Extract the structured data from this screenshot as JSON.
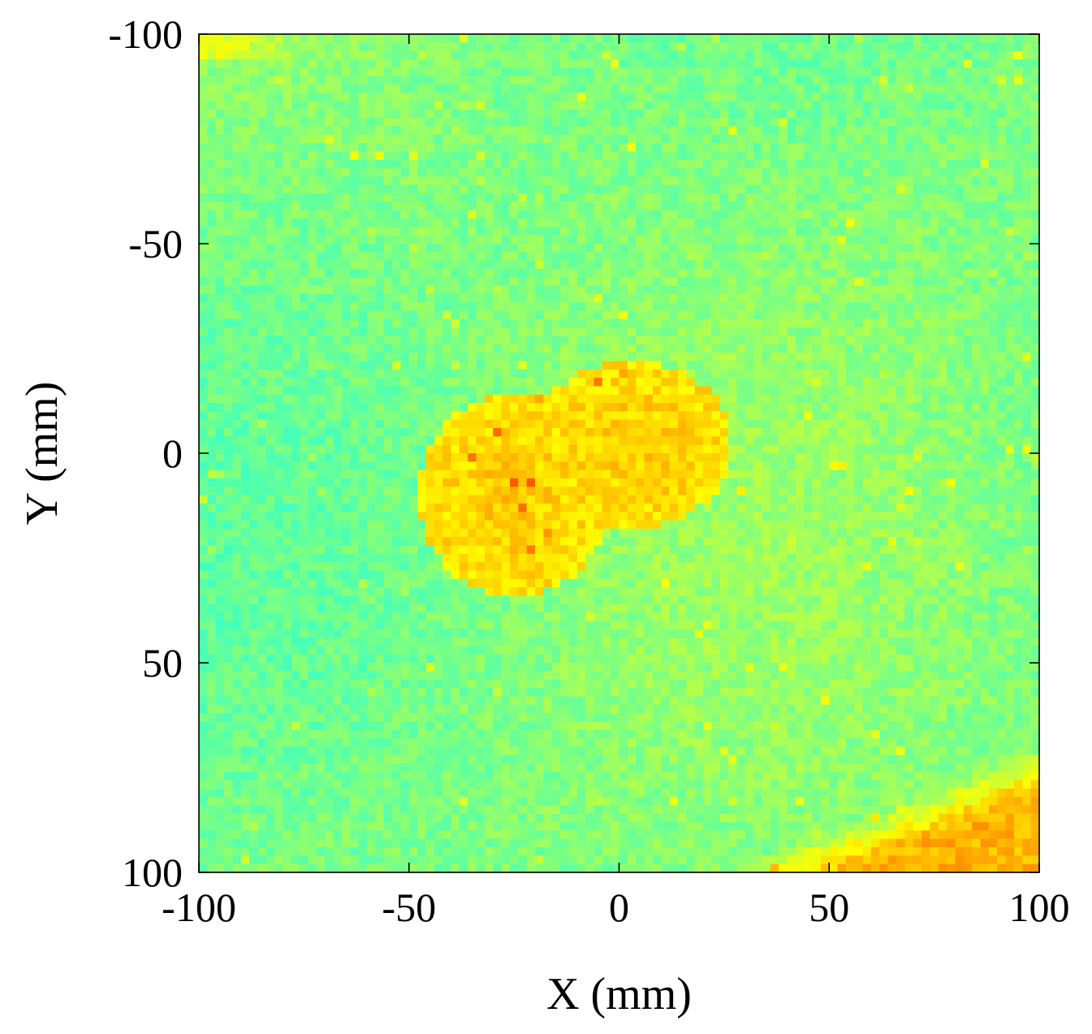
{
  "chart_data": {
    "type": "heatmap",
    "title": "",
    "xlabel": "X (mm)",
    "ylabel": "Y (mm)",
    "xlim": [
      -100,
      100
    ],
    "ylim": [
      -100,
      100
    ],
    "y_axis_reversed": true,
    "grid": false,
    "legend": "none",
    "colormap": "jet",
    "x_ticks": [
      -100,
      -50,
      0,
      50,
      100
    ],
    "y_ticks": [
      -100,
      -50,
      0,
      50,
      100
    ],
    "x_tick_labels": [
      "-100",
      "-50",
      "0",
      "50",
      "100"
    ],
    "y_tick_labels": [
      "-100",
      "-50",
      "0",
      "50",
      "100"
    ],
    "background_level": 0.5,
    "features": [
      {
        "shape": "blob",
        "center": [
          -25,
          10
        ],
        "radius": [
          23,
          24
        ],
        "level": 0.68
      },
      {
        "shape": "blob",
        "center": [
          3,
          -2
        ],
        "radius": [
          24,
          20
        ],
        "level": 0.68
      },
      {
        "shape": "corner-region",
        "corner": "bottom-right",
        "x_range": [
          22,
          100
        ],
        "y_range": [
          69,
          100
        ],
        "level": 0.7
      },
      {
        "shape": "corner-region",
        "corner": "top-left",
        "x_range": [
          -100,
          -70
        ],
        "y_range": [
          -100,
          -94
        ],
        "level": 0.6
      }
    ]
  }
}
